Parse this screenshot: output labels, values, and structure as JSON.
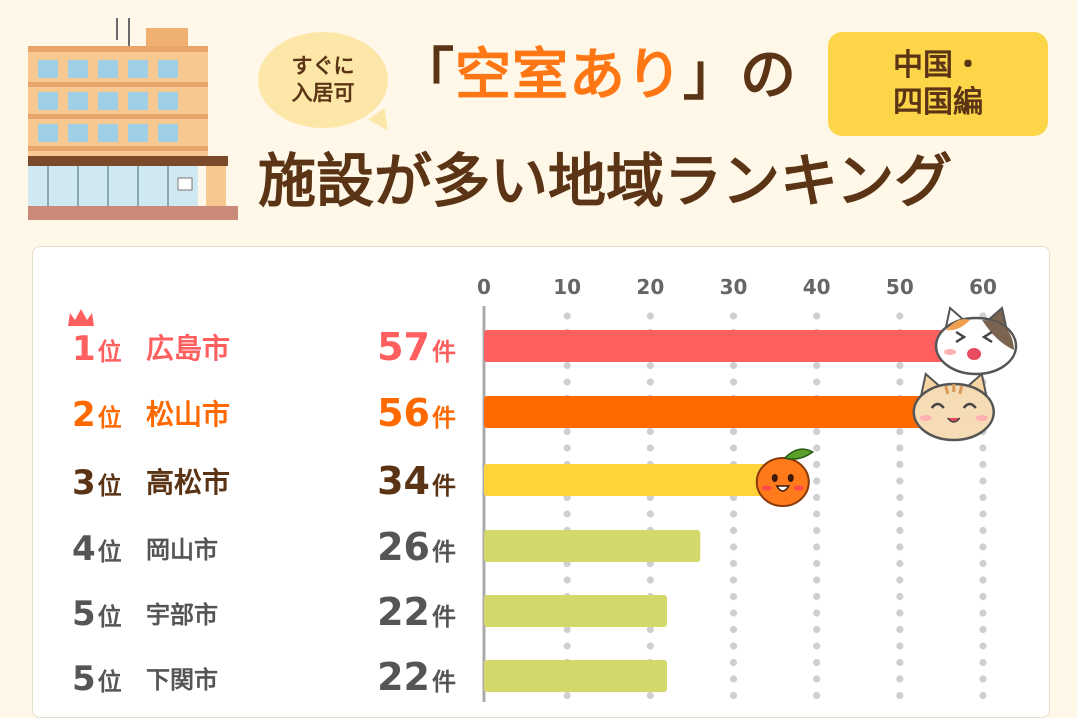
{
  "header": {
    "bubble_line1": "すぐに",
    "bubble_line2": "入居可",
    "title_line1_open": "「",
    "title_line1_highlight": "空室あり",
    "title_line1_close": "」の",
    "badge_line1": "中国・",
    "badge_line2": "四国編",
    "title_line2": "施設が多い地域ランキング"
  },
  "colors": {
    "rank1": "#ff5f5f",
    "rank2": "#ff6a00",
    "rank3": "#ffd43b",
    "others": "#d4d86a",
    "text_brown": "#5a3414",
    "text_gray": "#555555",
    "accent_orange": "#ff7614"
  },
  "icons": [
    "crown-icon",
    "calico-cat-icon",
    "tabby-cat-icon",
    "mikan-orange-icon",
    "apartment-building-icon"
  ],
  "chart_data": {
    "type": "bar",
    "orientation": "horizontal",
    "categories": [
      "広島市",
      "松山市",
      "高松市",
      "岡山市",
      "宇部市",
      "下関市"
    ],
    "ranks": [
      "1位",
      "2位",
      "3位",
      "4位",
      "5位",
      "5位"
    ],
    "values": [
      57,
      56,
      34,
      26,
      22,
      22
    ],
    "value_labels": [
      "57件",
      "56件",
      "34件",
      "26件",
      "22件",
      "22件"
    ],
    "xticks": [
      "0",
      "10",
      "20",
      "30",
      "40",
      "50",
      "60"
    ],
    "xlim": [
      0,
      60
    ],
    "grid": true
  }
}
